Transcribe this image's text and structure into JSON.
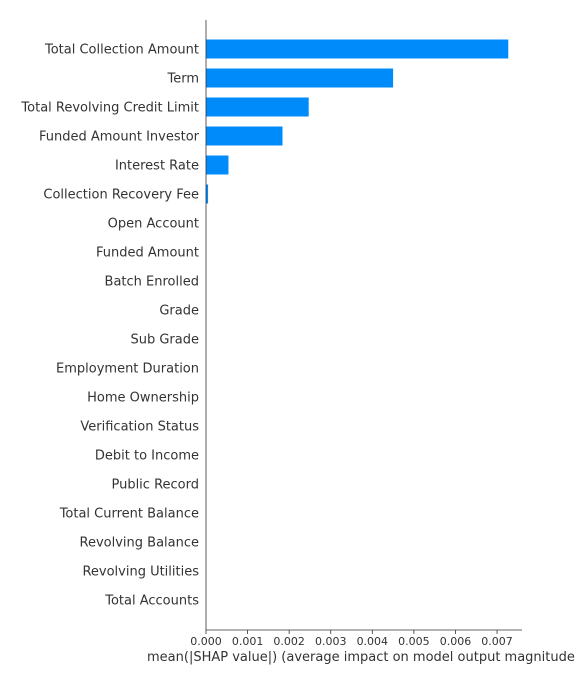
{
  "chart_data": {
    "type": "bar",
    "orientation": "horizontal",
    "categories": [
      "Total Collection Amount",
      "Term",
      "Total Revolving Credit Limit",
      "Funded Amount Investor",
      "Interest Rate",
      "Collection Recovery Fee",
      "Open Account",
      "Funded Amount",
      "Batch Enrolled",
      "Grade",
      "Sub Grade",
      "Employment Duration",
      "Home Ownership",
      "Verification Status",
      "Debit to Income",
      "Public Record",
      "Total Current Balance",
      "Revolving Balance",
      "Revolving Utilities",
      "Total Accounts"
    ],
    "values": [
      0.00727,
      0.0045,
      0.00247,
      0.00184,
      0.00054,
      5e-05,
      0,
      0,
      0,
      0,
      0,
      0,
      0,
      0,
      0,
      0,
      0,
      0,
      0,
      0
    ],
    "xlabel": "mean(|SHAP value|) (average impact on model output magnitude)",
    "ylabel": "",
    "xlim": [
      0,
      0.0076
    ],
    "xticks": [
      "0.000",
      "0.001",
      "0.002",
      "0.003",
      "0.004",
      "0.005",
      "0.006",
      "0.007"
    ],
    "bar_color": "#008bfb",
    "grid": false
  }
}
